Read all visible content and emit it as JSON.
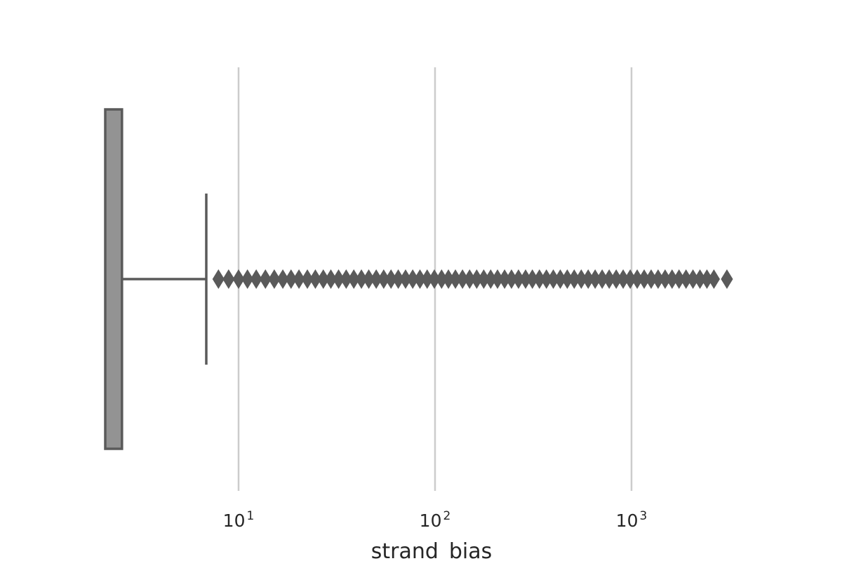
{
  "chart_data": {
    "type": "box",
    "orientation": "horizontal",
    "xscale": "log",
    "xlabel": "strand_bias",
    "ylabel": "",
    "title": "",
    "xlim": [
      1.8,
      6000
    ],
    "grid": "vertical",
    "ticks": [
      {
        "value": 10,
        "base": "10",
        "exp": "1"
      },
      {
        "value": 100,
        "base": "10",
        "exp": "2"
      },
      {
        "value": 1000,
        "base": "10",
        "exp": "3"
      }
    ],
    "box": {
      "q1": 1.8,
      "median": 1.8,
      "q3": 2.55,
      "whisker_low": 1.8,
      "whisker_high": 6.85
    },
    "outliers": [
      7.9,
      8.9,
      10.0,
      11.1,
      12.3,
      13.7,
      15.2,
      16.8,
      18.5,
      20.3,
      22.4,
      24.6,
      27.0,
      29.5,
      32.3,
      35.3,
      38.6,
      42.2,
      46.0,
      50.2,
      54.8,
      59.7,
      65.0,
      70.8,
      77.0,
      83.8,
      91.2,
      99.2,
      108,
      117,
      127,
      138,
      150,
      163,
      177,
      192,
      208,
      226,
      245,
      266,
      289,
      313,
      340,
      369,
      400,
      434,
      471,
      511,
      555,
      602,
      653,
      709,
      770,
      836,
      907,
      985,
      1069,
      1160,
      1259,
      1366,
      1483,
      1609,
      1746,
      1895,
      2056,
      2231,
      2421,
      2627,
      3060
    ],
    "colors": {
      "box_fill": "#939393",
      "line": "#5a5a5a",
      "grid": "#cccccc",
      "text": "#262626"
    }
  }
}
